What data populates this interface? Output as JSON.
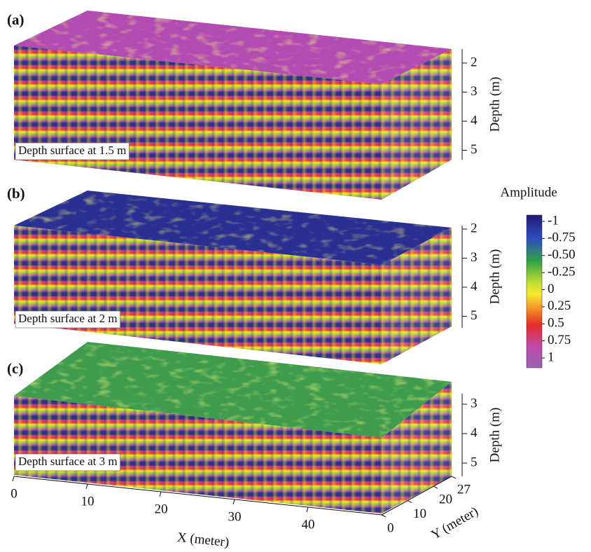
{
  "panels": [
    {
      "label": "(a)",
      "caption": "Depth surface at 1.5 m",
      "depth_label": "Depth (m)",
      "depth_ticks": [
        2,
        3,
        4,
        5
      ]
    },
    {
      "label": "(b)",
      "caption": "Depth surface at 2 m",
      "depth_label": "Depth (m)",
      "depth_ticks": [
        2,
        3,
        4,
        5
      ]
    },
    {
      "label": "(c)",
      "caption": "Depth surface at 3 m",
      "depth_label": "Depth (m)",
      "depth_ticks": [
        3,
        4,
        5
      ]
    }
  ],
  "colorbar": {
    "title": "Amplitude",
    "ticks": [
      -1,
      -0.75,
      {
        "value": -0.5,
        "label": "-0.50"
      },
      -0.25,
      0,
      0.25,
      0.5,
      0.75,
      1
    ]
  },
  "x_axis": {
    "label": "X (meter)",
    "ticks": [
      0,
      10,
      20,
      30,
      40
    ]
  },
  "y_axis": {
    "label": "Y (meter)",
    "ticks": [
      0,
      10,
      20,
      27
    ]
  }
}
